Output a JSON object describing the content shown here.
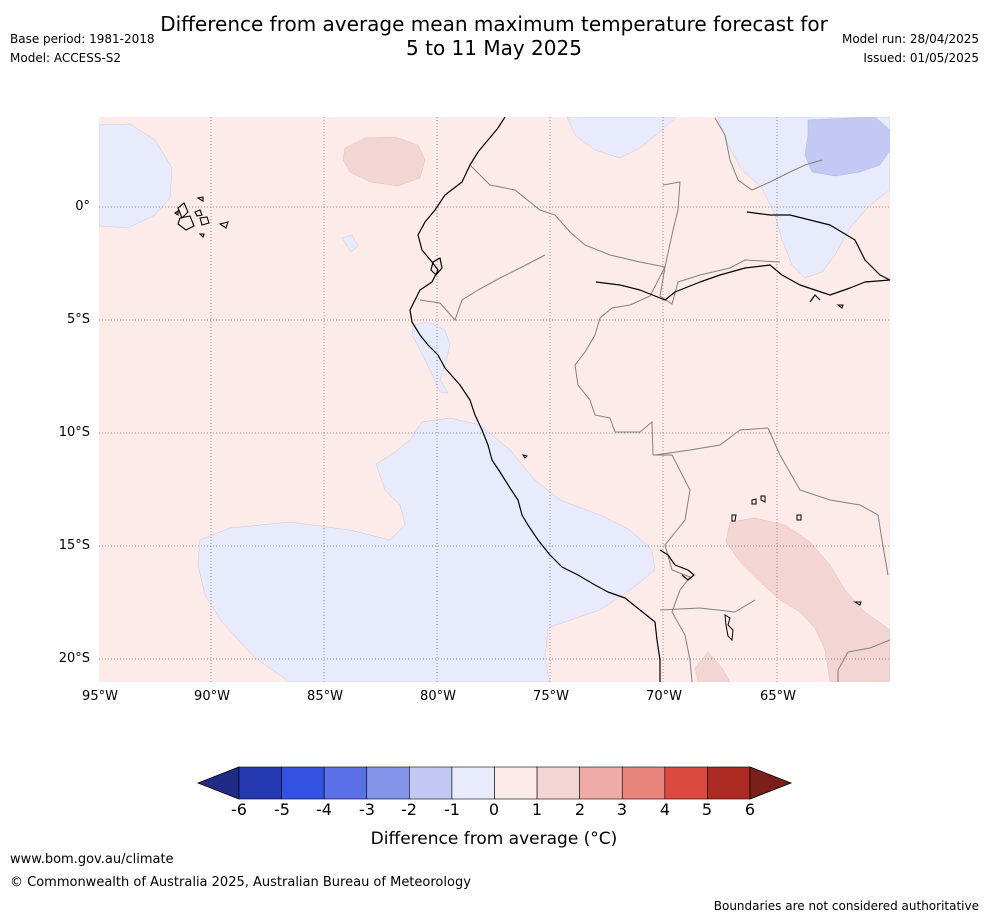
{
  "title_line1": "Difference from average mean maximum temperature forecast for",
  "title_line2": "5 to 11 May 2025",
  "base_period": "Base period: 1981-2018",
  "model": "Model: ACCESS-S2",
  "model_run": "Model run: 28/04/2025",
  "issued": "Issued: 01/05/2025",
  "map": {
    "lon_range": [
      -95,
      -60
    ],
    "lat_range": [
      -21,
      4
    ],
    "lon_ticks": [
      "95°W",
      "90°W",
      "85°W",
      "80°W",
      "75°W",
      "70°W",
      "65°W"
    ],
    "lat_ticks": [
      "0°",
      "5°S",
      "10°S",
      "15°S",
      "20°S"
    ],
    "grid": "dotted"
  },
  "colorbar": {
    "label": "Difference from average (°C)",
    "ticks": [
      "-6",
      "-5",
      "-4",
      "-3",
      "-2",
      "-1",
      "0",
      "1",
      "2",
      "3",
      "4",
      "5",
      "6"
    ],
    "colors": [
      "#1f2c85",
      "#253ab0",
      "#3352e0",
      "#5b70e6",
      "#8494ea",
      "#c3c9f3",
      "#e8ebfb",
      "#fdebea",
      "#f3d5d3",
      "#efaca7",
      "#e8857c",
      "#dc4a3f",
      "#ab2a22",
      "#7a1f1a"
    ],
    "extend": "both"
  },
  "footer": {
    "website": "www.bom.gov.au/climate",
    "copyright": "© Commonwealth of Australia 2025, Australian Bureau of Meteorology",
    "disclaimer": "Boundaries are not considered authoritative"
  }
}
